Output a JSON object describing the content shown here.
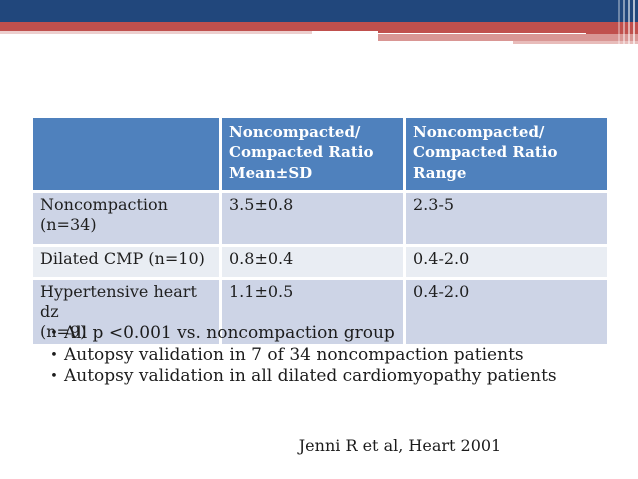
{
  "decoration": {
    "colors": {
      "banner_blue": "#21477c",
      "banner_red": "#c0504d",
      "banner_pink": "#d99694",
      "banner_pale_pink": "#e8bcba"
    }
  },
  "table": {
    "headers": [
      "",
      "Noncompacted/\nCompacted Ratio\nMean±SD",
      "Noncompacted/\nCompacted Ratio\nRange"
    ],
    "rows": [
      {
        "label": "Noncompaction\n(n=34)",
        "mean_sd": "3.5±0.8",
        "range": "2.3-5"
      },
      {
        "label": "Dilated CMP (n=10)",
        "mean_sd": "0.8±0.4",
        "range": "0.4-2.0"
      },
      {
        "label": "Hypertensive heart dz\n(n=9)",
        "mean_sd": "1.1±0.5",
        "range": "0.4-2.0"
      }
    ],
    "colors": {
      "header_bg": "#4f81bd",
      "header_text": "#ffffff",
      "row_odd_bg": "#cdd4e6",
      "row_even_bg": "#e9edf3",
      "body_text": "#1f1f1f"
    }
  },
  "bullets": {
    "marker": "•",
    "items": [
      "All p <0.001 vs. noncompaction group",
      "Autopsy validation in 7 of 34 noncompaction patients",
      "Autopsy validation in all dilated cardiomyopathy patients"
    ]
  },
  "citation": {
    "text": "Jenni R et al, Heart 2001"
  }
}
